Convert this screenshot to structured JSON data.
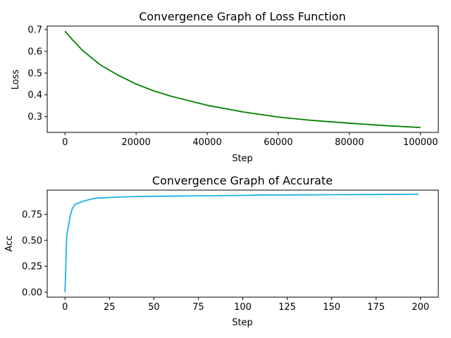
{
  "chart_data": [
    {
      "type": "line",
      "title": "Convergence Graph of Loss Function",
      "xlabel": "Step",
      "ylabel": "Loss",
      "xlim": [
        -5000,
        105000
      ],
      "ylim": [
        0.2277,
        0.716
      ],
      "xticks": [
        0,
        20000,
        40000,
        60000,
        80000,
        100000
      ],
      "xtick_labels": [
        "0",
        "20000",
        "40000",
        "60000",
        "80000",
        "100000"
      ],
      "yticks": [
        0.3,
        0.4,
        0.5,
        0.6,
        0.7
      ],
      "ytick_labels": [
        "0.3",
        "0.4",
        "0.5",
        "0.6",
        "0.7"
      ],
      "grid": false,
      "series": [
        {
          "color": "#008000",
          "x": [
            0,
            2000,
            5000,
            10000,
            15000,
            20000,
            25000,
            30000,
            40000,
            50000,
            60000,
            70000,
            80000,
            90000,
            100000
          ],
          "y": [
            0.693,
            0.655,
            0.603,
            0.537,
            0.49,
            0.45,
            0.418,
            0.393,
            0.352,
            0.322,
            0.298,
            0.282,
            0.27,
            0.259,
            0.25
          ]
        }
      ]
    },
    {
      "type": "line",
      "title": "Convergence Graph of Accurate",
      "xlabel": "Step",
      "ylabel": "Acc",
      "xlim": [
        -10,
        210
      ],
      "ylim": [
        -0.047,
        0.983
      ],
      "xticks": [
        0,
        25,
        50,
        75,
        100,
        125,
        150,
        175,
        200
      ],
      "xtick_labels": [
        "0",
        "25",
        "50",
        "75",
        "100",
        "125",
        "150",
        "175",
        "200"
      ],
      "yticks": [
        0.0,
        0.25,
        0.5,
        0.75
      ],
      "ytick_labels": [
        "0.00",
        "0.25",
        "0.50",
        "0.75"
      ],
      "grid": false,
      "series": [
        {
          "color": "#1ab2e8",
          "x": [
            0,
            1,
            2,
            3,
            4,
            5,
            6,
            8,
            10,
            12,
            14,
            17,
            20,
            25,
            30,
            40,
            50,
            60,
            75,
            100,
            110,
            125,
            150,
            175,
            199
          ],
          "y": [
            0.0,
            0.55,
            0.64,
            0.74,
            0.8,
            0.83,
            0.85,
            0.86,
            0.875,
            0.885,
            0.893,
            0.905,
            0.908,
            0.912,
            0.916,
            0.921,
            0.924,
            0.925,
            0.928,
            0.932,
            0.936,
            0.937,
            0.939,
            0.941,
            0.943
          ]
        }
      ]
    }
  ]
}
